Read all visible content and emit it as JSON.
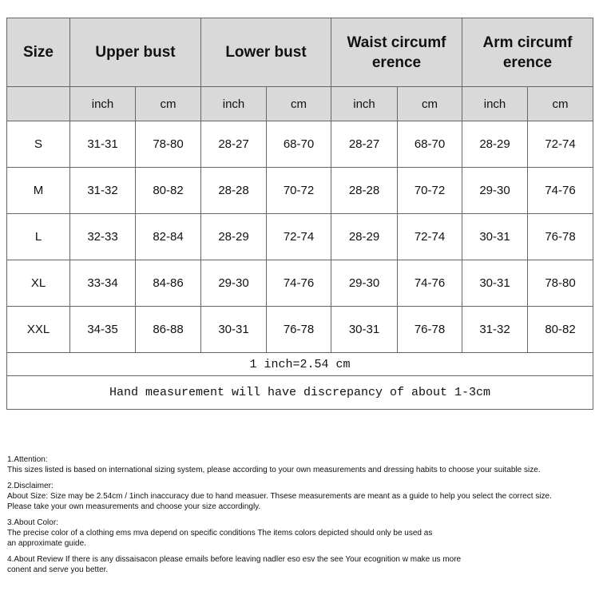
{
  "table": {
    "headers": [
      "Size",
      "Upper bust",
      "Lower bust",
      "Waist circumf erence",
      "Arm circumf erence"
    ],
    "units": [
      "inch",
      "cm",
      "inch",
      "cm",
      "inch",
      "cm",
      "inch",
      "cm"
    ],
    "rows": [
      [
        "S",
        "31-31",
        "78-80",
        "28-27",
        "68-70",
        "28-27",
        "68-70",
        "28-29",
        "72-74"
      ],
      [
        "M",
        "31-32",
        "80-82",
        "28-28",
        "70-72",
        "28-28",
        "70-72",
        "29-30",
        "74-76"
      ],
      [
        "L",
        "32-33",
        "82-84",
        "28-29",
        "72-74",
        "28-29",
        "72-74",
        "30-31",
        "76-78"
      ],
      [
        "XL",
        "33-34",
        "84-86",
        "29-30",
        "74-76",
        "29-30",
        "74-76",
        "30-31",
        "78-80"
      ],
      [
        "XXL",
        "34-35",
        "86-88",
        "30-31",
        "76-78",
        "30-31",
        "76-78",
        "31-32",
        "80-82"
      ]
    ],
    "conversion": "1 inch=2.54 cm",
    "discrepancy": "Hand measurement will have discrepancy of about 1-3cm"
  },
  "notes": [
    {
      "title": "1.Attention:",
      "lines": [
        "This sizes listed is based on international sizing system, please according to your own measurements and dressing habits to choose your suitable size."
      ]
    },
    {
      "title": "2.Disclaimer:",
      "lines": [
        "About Size: Size may be 2.54cm / 1inch inaccuracy due to hand measuer. Thsese measurements are meant as a guide to help you select the correct size.",
        "Please take your own measurements and choose your size accordingly."
      ]
    },
    {
      "title": "3.About Color:",
      "lines": [
        "The precise color of a clothing ems mva depend on specific conditions The items colors depicted should only be used as",
        "an approximate guide."
      ]
    },
    {
      "title": "",
      "lines": [
        "4.About Review If there is any dissaisacon please emails before leaving nadler eso esv the see Your ecognition w make us more",
        "conent and serve you better."
      ]
    }
  ],
  "colors": {
    "header_bg": "#d9d9d9",
    "border": "#666666"
  }
}
